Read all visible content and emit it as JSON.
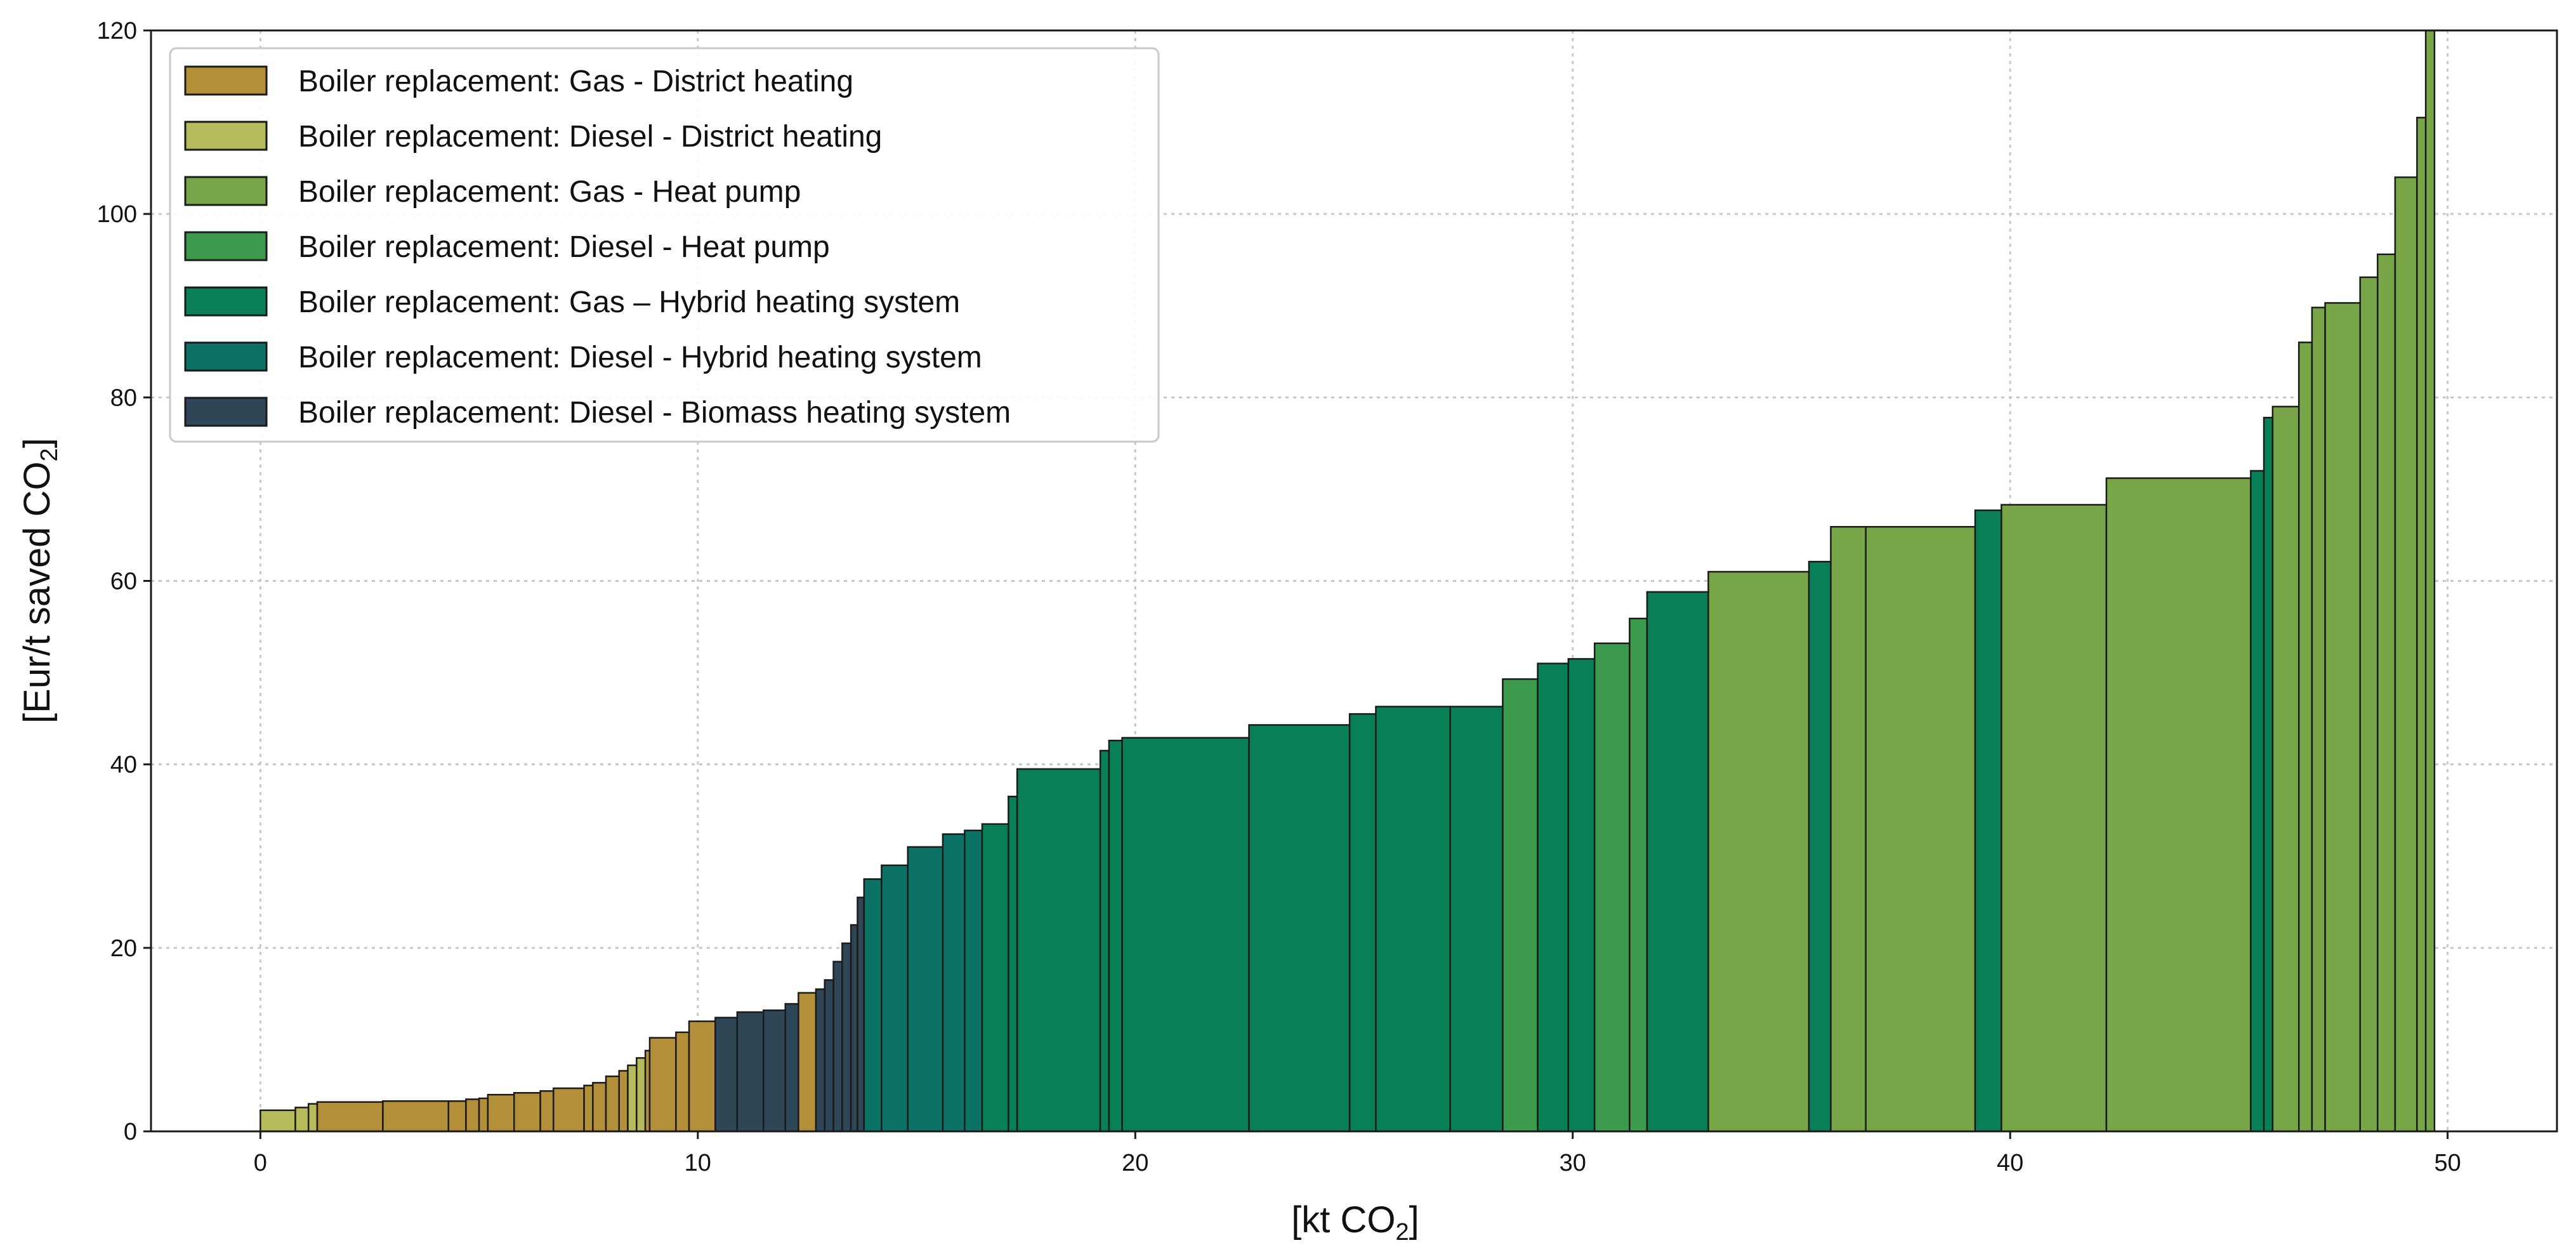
{
  "chart_data": {
    "type": "bar",
    "subtype": "marginal-abatement-cost-curve",
    "title": "",
    "xlabel": "[kt CO",
    "xlabel_sub": "2",
    "xlabel_end": "]",
    "ylabel": "[Eur/t saved CO",
    "ylabel_sub": "2",
    "ylabel_end": "]",
    "xlim": [
      -2.5,
      52.5
    ],
    "ylim": [
      0,
      120
    ],
    "x_ticks": [
      0,
      10,
      20,
      30,
      40,
      50
    ],
    "y_ticks": [
      0,
      20,
      40,
      60,
      80,
      100,
      120
    ],
    "grid": true,
    "legend_position": "top-left",
    "series": [
      {
        "key": "gas_dh",
        "name": "Boiler replacement: Gas - District heating",
        "color": "#b38f3a"
      },
      {
        "key": "diesel_dh",
        "name": "Boiler replacement: Diesel - District heating",
        "color": "#b5bb5a"
      },
      {
        "key": "gas_hp",
        "name": "Boiler replacement: Gas - Heat pump",
        "color": "#78a548"
      },
      {
        "key": "diesel_hp",
        "name": "Boiler replacement: Diesel - Heat pump",
        "color": "#3b9a4c"
      },
      {
        "key": "gas_hybrid",
        "name": "Boiler replacement: Gas – Hybrid heating system",
        "color": "#087f54"
      },
      {
        "key": "diesel_hybrid",
        "name": "Boiler replacement: Diesel - Hybrid heating system",
        "color": "#0c7265"
      },
      {
        "key": "diesel_biomass",
        "name": "Boiler replacement: Diesel - Biomass heating system",
        "color": "#2e4656"
      }
    ],
    "segments": [
      {
        "series": "diesel_dh",
        "x0": 0.0,
        "x1": 0.8,
        "y": 2.3
      },
      {
        "series": "diesel_dh",
        "x0": 0.8,
        "x1": 1.1,
        "y": 2.6
      },
      {
        "series": "diesel_dh",
        "x0": 1.1,
        "x1": 1.3,
        "y": 3.0
      },
      {
        "series": "gas_dh",
        "x0": 1.3,
        "x1": 2.8,
        "y": 3.2
      },
      {
        "series": "gas_dh",
        "x0": 2.8,
        "x1": 4.3,
        "y": 3.3
      },
      {
        "series": "gas_dh",
        "x0": 4.3,
        "x1": 4.7,
        "y": 3.3
      },
      {
        "series": "gas_dh",
        "x0": 4.7,
        "x1": 5.0,
        "y": 3.5
      },
      {
        "series": "gas_dh",
        "x0": 5.0,
        "x1": 5.2,
        "y": 3.6
      },
      {
        "series": "gas_dh",
        "x0": 5.2,
        "x1": 5.8,
        "y": 4.0
      },
      {
        "series": "gas_dh",
        "x0": 5.8,
        "x1": 6.4,
        "y": 4.2
      },
      {
        "series": "gas_dh",
        "x0": 6.4,
        "x1": 6.7,
        "y": 4.4
      },
      {
        "series": "gas_dh",
        "x0": 6.7,
        "x1": 7.4,
        "y": 4.7
      },
      {
        "series": "gas_dh",
        "x0": 7.4,
        "x1": 7.6,
        "y": 5.0
      },
      {
        "series": "gas_dh",
        "x0": 7.6,
        "x1": 7.9,
        "y": 5.3
      },
      {
        "series": "gas_dh",
        "x0": 7.9,
        "x1": 8.2,
        "y": 6.0
      },
      {
        "series": "gas_dh",
        "x0": 8.2,
        "x1": 8.4,
        "y": 6.6
      },
      {
        "series": "diesel_dh",
        "x0": 8.4,
        "x1": 8.6,
        "y": 7.2
      },
      {
        "series": "diesel_dh",
        "x0": 8.6,
        "x1": 8.8,
        "y": 8.0
      },
      {
        "series": "gas_dh",
        "x0": 8.8,
        "x1": 8.9,
        "y": 8.8
      },
      {
        "series": "gas_dh",
        "x0": 8.9,
        "x1": 9.5,
        "y": 10.2
      },
      {
        "series": "gas_dh",
        "x0": 9.5,
        "x1": 9.8,
        "y": 10.8
      },
      {
        "series": "gas_dh",
        "x0": 9.8,
        "x1": 10.4,
        "y": 12.0
      },
      {
        "series": "diesel_biomass",
        "x0": 10.4,
        "x1": 10.9,
        "y": 12.4
      },
      {
        "series": "diesel_biomass",
        "x0": 10.9,
        "x1": 11.5,
        "y": 13.0
      },
      {
        "series": "diesel_biomass",
        "x0": 11.5,
        "x1": 12.0,
        "y": 13.2
      },
      {
        "series": "diesel_biomass",
        "x0": 12.0,
        "x1": 12.3,
        "y": 13.9
      },
      {
        "series": "gas_dh",
        "x0": 12.3,
        "x1": 12.7,
        "y": 15.1
      },
      {
        "series": "diesel_biomass",
        "x0": 12.7,
        "x1": 12.9,
        "y": 15.5
      },
      {
        "series": "diesel_biomass",
        "x0": 12.9,
        "x1": 13.1,
        "y": 16.5
      },
      {
        "series": "diesel_biomass",
        "x0": 13.1,
        "x1": 13.3,
        "y": 18.5
      },
      {
        "series": "diesel_biomass",
        "x0": 13.3,
        "x1": 13.5,
        "y": 20.5
      },
      {
        "series": "diesel_biomass",
        "x0": 13.5,
        "x1": 13.65,
        "y": 22.5
      },
      {
        "series": "diesel_biomass",
        "x0": 13.65,
        "x1": 13.8,
        "y": 25.5
      },
      {
        "series": "diesel_hybrid",
        "x0": 13.8,
        "x1": 14.2,
        "y": 27.5
      },
      {
        "series": "diesel_hybrid",
        "x0": 14.2,
        "x1": 14.8,
        "y": 29.0
      },
      {
        "series": "diesel_hybrid",
        "x0": 14.8,
        "x1": 15.6,
        "y": 31.0
      },
      {
        "series": "diesel_hybrid",
        "x0": 15.6,
        "x1": 16.1,
        "y": 32.4
      },
      {
        "series": "diesel_hybrid",
        "x0": 16.1,
        "x1": 16.5,
        "y": 32.8
      },
      {
        "series": "gas_hybrid",
        "x0": 16.5,
        "x1": 17.1,
        "y": 33.5
      },
      {
        "series": "gas_hybrid",
        "x0": 17.1,
        "x1": 17.3,
        "y": 36.5
      },
      {
        "series": "gas_hybrid",
        "x0": 17.3,
        "x1": 19.2,
        "y": 39.5
      },
      {
        "series": "gas_hybrid",
        "x0": 19.2,
        "x1": 19.4,
        "y": 41.5
      },
      {
        "series": "gas_hybrid",
        "x0": 19.4,
        "x1": 19.7,
        "y": 42.6
      },
      {
        "series": "gas_hybrid",
        "x0": 19.7,
        "x1": 22.6,
        "y": 42.9
      },
      {
        "series": "gas_hybrid",
        "x0": 22.6,
        "x1": 24.9,
        "y": 44.3
      },
      {
        "series": "gas_hybrid",
        "x0": 24.9,
        "x1": 25.5,
        "y": 45.5
      },
      {
        "series": "gas_hybrid",
        "x0": 25.5,
        "x1": 27.2,
        "y": 46.3
      },
      {
        "series": "gas_hybrid",
        "x0": 27.2,
        "x1": 28.4,
        "y": 46.3
      },
      {
        "series": "diesel_hp",
        "x0": 28.4,
        "x1": 29.2,
        "y": 49.3
      },
      {
        "series": "gas_hybrid",
        "x0": 29.2,
        "x1": 29.9,
        "y": 51.0
      },
      {
        "series": "gas_hybrid",
        "x0": 29.9,
        "x1": 30.5,
        "y": 51.5
      },
      {
        "series": "diesel_hp",
        "x0": 30.5,
        "x1": 31.3,
        "y": 53.2
      },
      {
        "series": "diesel_hp",
        "x0": 31.3,
        "x1": 31.7,
        "y": 55.9
      },
      {
        "series": "gas_hybrid",
        "x0": 31.7,
        "x1": 33.1,
        "y": 58.8
      },
      {
        "series": "gas_hp",
        "x0": 33.1,
        "x1": 35.4,
        "y": 61.0
      },
      {
        "series": "gas_hybrid",
        "x0": 35.4,
        "x1": 35.9,
        "y": 62.1
      },
      {
        "series": "gas_hp",
        "x0": 35.9,
        "x1": 36.7,
        "y": 65.9
      },
      {
        "series": "gas_hp",
        "x0": 36.7,
        "x1": 39.2,
        "y": 65.9
      },
      {
        "series": "gas_hybrid",
        "x0": 39.2,
        "x1": 39.8,
        "y": 67.7
      },
      {
        "series": "gas_hp",
        "x0": 39.8,
        "x1": 42.2,
        "y": 68.3
      },
      {
        "series": "gas_hp",
        "x0": 42.2,
        "x1": 45.5,
        "y": 71.2
      },
      {
        "series": "gas_hybrid",
        "x0": 45.5,
        "x1": 45.8,
        "y": 72.0
      },
      {
        "series": "gas_hybrid",
        "x0": 45.8,
        "x1": 46.0,
        "y": 77.8
      },
      {
        "series": "gas_hp",
        "x0": 46.0,
        "x1": 46.6,
        "y": 79.0
      },
      {
        "series": "gas_hp",
        "x0": 46.6,
        "x1": 46.9,
        "y": 86.0
      },
      {
        "series": "gas_hp",
        "x0": 46.9,
        "x1": 47.2,
        "y": 89.8
      },
      {
        "series": "gas_hp",
        "x0": 47.2,
        "x1": 48.0,
        "y": 90.3
      },
      {
        "series": "gas_hp",
        "x0": 48.0,
        "x1": 48.4,
        "y": 93.1
      },
      {
        "series": "gas_hp",
        "x0": 48.4,
        "x1": 48.8,
        "y": 95.6
      },
      {
        "series": "gas_hp",
        "x0": 48.8,
        "x1": 49.3,
        "y": 104.0
      },
      {
        "series": "gas_hp",
        "x0": 49.3,
        "x1": 49.5,
        "y": 110.5
      },
      {
        "series": "gas_hp",
        "x0": 49.5,
        "x1": 49.7,
        "y": 120.0
      }
    ]
  }
}
